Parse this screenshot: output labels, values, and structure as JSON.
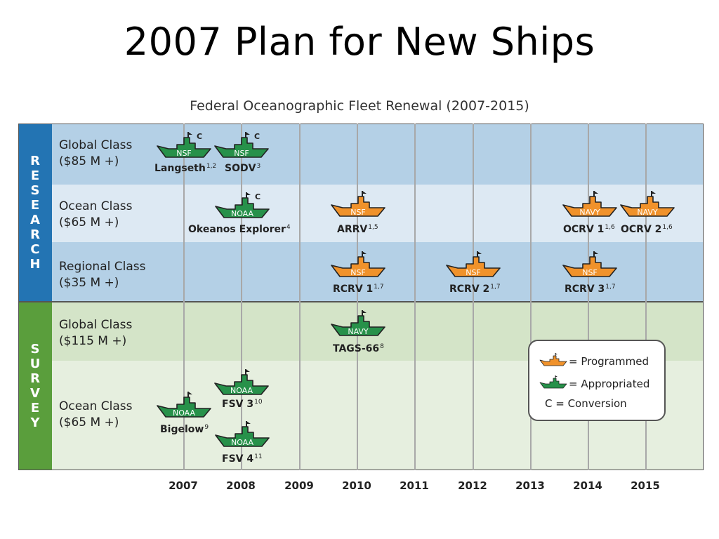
{
  "slide_title": "2007 Plan for New Ships",
  "chart_title": "Federal Oceanographic Fleet Renewal (2007-2015)",
  "sections": [
    {
      "label": "RESEARCH",
      "color": "#2374b3"
    },
    {
      "label": "SURVEY",
      "color": "#5a9e3c"
    }
  ],
  "rows": [
    {
      "name": "Global Class",
      "cost": "($85 M +)"
    },
    {
      "name": "Ocean Class",
      "cost": "($65 M +)"
    },
    {
      "name": "Regional Class",
      "cost": "($35 M +)"
    },
    {
      "name": "Global Class",
      "cost": "($115 M +)"
    },
    {
      "name": "Ocean Class",
      "cost": "($65 M +)"
    }
  ],
  "years": [
    "2007",
    "2008",
    "2009",
    "2010",
    "2011",
    "2012",
    "2013",
    "2014",
    "2015"
  ],
  "colors": {
    "programmed": "#f0922b",
    "appropriated": "#27914a",
    "research_band_dark": "#b4d0e6",
    "research_band_light": "#dde9f3",
    "survey_band_dark": "#d4e4c8",
    "survey_band_light": "#e6efdf",
    "gridline": "#a8a8a8"
  },
  "ships": [
    {
      "name": "Langseth",
      "notes": "1,2",
      "agency": "NSF",
      "status": "appropriated",
      "conversion": "C"
    },
    {
      "name": "SODV",
      "notes": "3",
      "agency": "NSF",
      "status": "appropriated",
      "conversion": "C"
    },
    {
      "name": "Okeanos Explorer",
      "notes": "4",
      "agency": "NOAA",
      "status": "appropriated",
      "conversion": "C"
    },
    {
      "name": "ARRV",
      "notes": "1,5",
      "agency": "NSF",
      "status": "programmed",
      "conversion": ""
    },
    {
      "name": "OCRV 1",
      "notes": "1,6",
      "agency": "NAVY",
      "status": "programmed",
      "conversion": ""
    },
    {
      "name": "OCRV 2",
      "notes": "1,6",
      "agency": "NAVY",
      "status": "programmed",
      "conversion": ""
    },
    {
      "name": "RCRV 1",
      "notes": "1,7",
      "agency": "NSF",
      "status": "programmed",
      "conversion": ""
    },
    {
      "name": "RCRV 2",
      "notes": "1,7",
      "agency": "NSF",
      "status": "programmed",
      "conversion": ""
    },
    {
      "name": "RCRV 3",
      "notes": "1,7",
      "agency": "NSF",
      "status": "programmed",
      "conversion": ""
    },
    {
      "name": "TAGS-66",
      "notes": "8",
      "agency": "NAVY",
      "status": "appropriated",
      "conversion": ""
    },
    {
      "name": "FSV 3",
      "notes": "10",
      "agency": "NOAA",
      "status": "appropriated",
      "conversion": ""
    },
    {
      "name": "Bigelow",
      "notes": "9",
      "agency": "NOAA",
      "status": "appropriated",
      "conversion": ""
    },
    {
      "name": "FSV 4",
      "notes": "11",
      "agency": "NOAA",
      "status": "appropriated",
      "conversion": ""
    }
  ],
  "legend": {
    "programmed": "= Programmed",
    "appropriated": "= Appropriated",
    "conversion": "C = Conversion"
  }
}
